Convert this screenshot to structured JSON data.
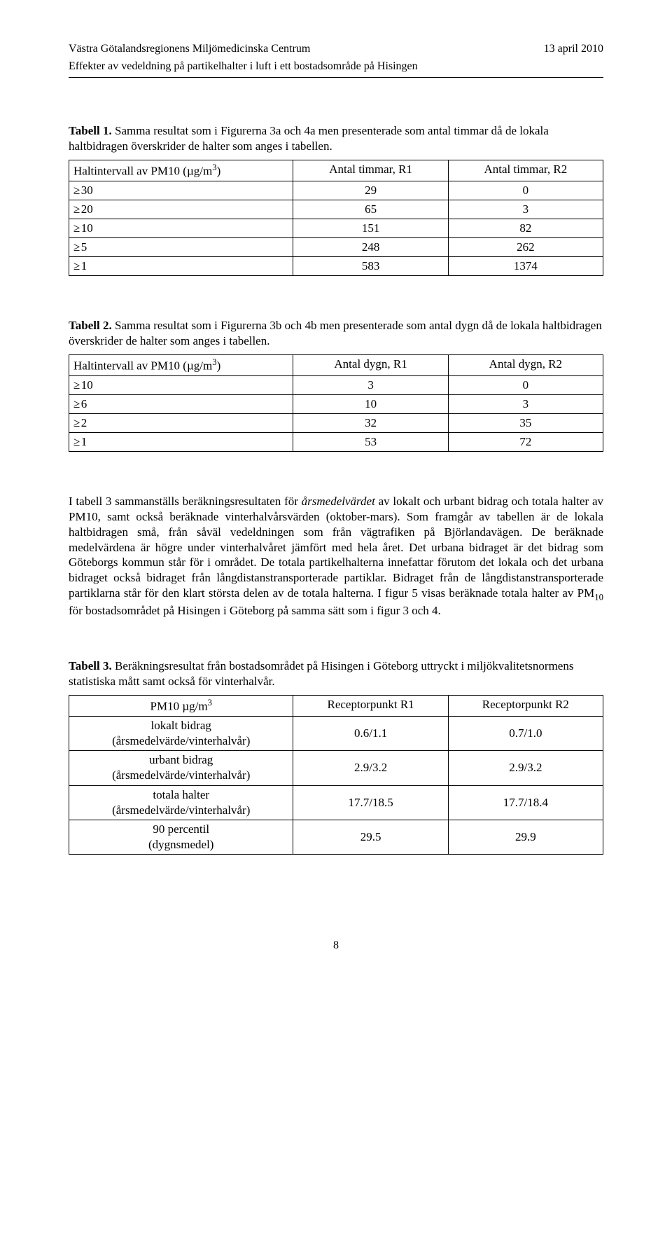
{
  "header": {
    "left": "Västra Götalandsregionens Miljömedicinska Centrum",
    "right": "13 april 2010",
    "sub": "Effekter av vedeldning på partikelhalter i luft i ett bostadsområde på Hisingen"
  },
  "table1": {
    "caption_bold": "Tabell 1.",
    "caption_rest": " Samma resultat som i Figurerna 3a och 4a men presenterade som antal timmar då de lokala haltbidragen överskrider de halter som anges i tabellen.",
    "head_c1_pre": "Haltintervall av PM10 (µg/m",
    "head_c1_sup": "3",
    "head_c1_post": ")",
    "head_c2": "Antal timmar, R1",
    "head_c3": "Antal timmar, R2",
    "rows": [
      [
        "30",
        "29",
        "0"
      ],
      [
        "20",
        "65",
        "3"
      ],
      [
        "10",
        "151",
        "82"
      ],
      [
        "5",
        "248",
        "262"
      ],
      [
        "1",
        "583",
        "1374"
      ]
    ],
    "geq": "≥"
  },
  "table2": {
    "caption_bold": "Tabell 2.",
    "caption_rest": " Samma resultat som i Figurerna 3b och 4b men presenterade som antal dygn då de lokala haltbidragen överskrider de halter som anges i tabellen.",
    "head_c1_pre": "Haltintervall av PM10 (µg/m",
    "head_c1_sup": "3",
    "head_c1_post": ")",
    "head_c2": "Antal dygn, R1",
    "head_c3": "Antal dygn, R2",
    "rows": [
      [
        "10",
        "3",
        "0"
      ],
      [
        "6",
        "10",
        "3"
      ],
      [
        "2",
        "32",
        "35"
      ],
      [
        "1",
        "53",
        "72"
      ]
    ],
    "geq": "≥"
  },
  "body": {
    "p1_pre": "I tabell 3 sammanställs beräkningsresultaten för ",
    "p1_italic": "årsmedelvärdet",
    "p1_mid": " av lokalt och urbant bidrag och totala halter av PM10, samt också beräknade vinterhalvårsvärden (oktober-mars). Som framgår av tabellen är de lokala haltbidragen små, från såväl vedeldningen som från vägtrafiken på Björlandavägen. De beräknade medelvärdena är högre under vinterhalvåret jämfört med hela året. Det urbana bidraget är det bidrag som Göteborgs kommun står för i området. De totala partikelhalterna innefattar förutom det lokala och det urbana bidraget också bidraget från långdistanstransporterade partiklar. Bidraget från de långdistanstransporterade partiklarna står för den klart största delen av de totala halterna. I figur 5 visas beräknade totala halter av PM",
    "p1_sub": "10",
    "p1_post": " för bostadsområdet på Hisingen i Göteborg på samma sätt som i figur 3 och 4."
  },
  "table3": {
    "caption_bold": "Tabell 3.",
    "caption_rest": " Beräkningsresultat från bostadsområdet på Hisingen i Göteborg uttryckt i miljökvalitetsnormens statistiska mått samt också för vinterhalvår.",
    "head_c1_pre": "PM10 µg/m",
    "head_c1_sup": "3",
    "head_c2": "Receptorpunkt R1",
    "head_c3": "Receptorpunkt R2",
    "rows": [
      {
        "l1": "lokalt bidrag",
        "l2": "(årsmedelvärde/vinterhalvår)",
        "v1": "0.6/1.1",
        "v2": "0.7/1.0"
      },
      {
        "l1": "urbant bidrag",
        "l2": "(årsmedelvärde/vinterhalvår)",
        "v1": "2.9/3.2",
        "v2": "2.9/3.2"
      },
      {
        "l1": "totala halter",
        "l2": "(årsmedelvärde/vinterhalvår)",
        "v1": "17.7/18.5",
        "v2": "17.7/18.4"
      },
      {
        "l1": "90 percentil",
        "l2": "(dygnsmedel)",
        "v1": "29.5",
        "v2": "29.9"
      }
    ]
  },
  "page_number": "8"
}
